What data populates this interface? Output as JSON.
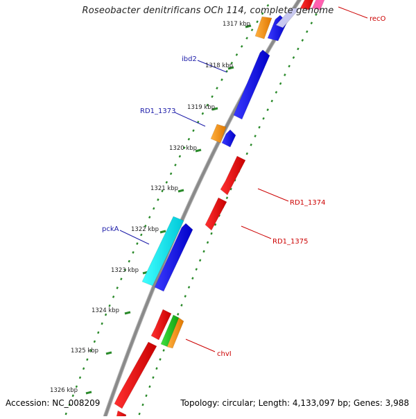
{
  "title": "Roseobacter denitrificans OCh 114, complete genome",
  "footer": {
    "accession": "Accession: NC_008209",
    "summary": "Topology: circular; Length: 4,133,097 bp; Genes: 3,988"
  },
  "colors": {
    "backbone": "#8a8a8a",
    "tick_dots": "#2a8a2a",
    "forward_gene": "#0000ee",
    "reverse_gene": "#ee0000",
    "label_blue": "#1a1aa8",
    "label_red": "#cc0000"
  },
  "scale_labels": [
    "1317 kbp",
    "1318 kbp",
    "1319 kbp",
    "1320 kbp",
    "1321 kbp",
    "1322 kbp",
    "1323 kbp",
    "1324 kbp",
    "1325 kbp",
    "1326 kbp"
  ],
  "gene_labels": [
    {
      "text": "recO",
      "color": "#cc0000"
    },
    {
      "text": "ibd2",
      "color": "#1a1aa8"
    },
    {
      "text": "RD1_1373",
      "color": "#1a1aa8"
    },
    {
      "text": "RD1_1374",
      "color": "#cc0000"
    },
    {
      "text": "RD1_1375",
      "color": "#cc0000"
    },
    {
      "text": "pckA",
      "color": "#1a1aa8"
    },
    {
      "text": "chvI",
      "color": "#cc0000"
    }
  ]
}
